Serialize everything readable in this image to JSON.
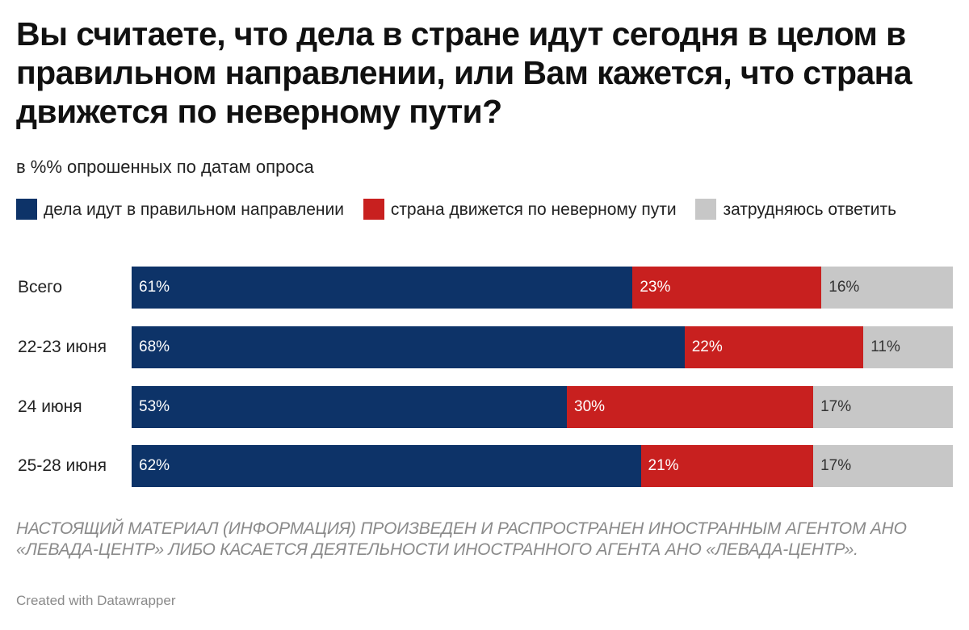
{
  "colors": {
    "right": "#0d3368",
    "wrong": "#c8201f",
    "hard": "#c7c7c7"
  },
  "chart_data": {
    "type": "bar",
    "orientation": "horizontal",
    "stacked": true,
    "title": "Вы считаете, что дела в стране идут сегодня в целом в правильном направлении, или Вам кажется, что страна движется по неверному пути?",
    "subtitle": "в %% опрошенных по датам опроса",
    "legend_position": "top",
    "categories": [
      "Всего",
      "22-23 июня",
      "24 июня",
      "25-28 июня"
    ],
    "xlim": [
      0,
      100
    ],
    "series": [
      {
        "name": "дела идут в правильном направлении",
        "color": "#0d3368",
        "values": [
          61,
          68,
          53,
          62
        ],
        "labels": [
          "61%",
          "68%",
          "53%",
          "62%"
        ]
      },
      {
        "name": "страна движется по неверному пути",
        "color": "#c8201f",
        "values": [
          23,
          22,
          30,
          21
        ],
        "labels": [
          "23%",
          "22%",
          "30%",
          "21%"
        ]
      },
      {
        "name": "затрудняюсь ответить",
        "color": "#c7c7c7",
        "values": [
          16,
          11,
          17,
          17
        ],
        "labels": [
          "16%",
          "11%",
          "17%",
          "17%"
        ]
      }
    ]
  },
  "footer": {
    "note": "НАСТОЯЩИЙ МАТЕРИАЛ (ИНФОРМАЦИЯ) ПРОИЗВЕДЕН И РАСПРОСТРАНЕН ИНОСТРАННЫМ АГЕНТОМ АНО «ЛЕВАДА-ЦЕНТР» ЛИБО КАСАЕТСЯ ДЕЯТЕЛЬНОСТИ ИНОСТРАННОГО АГЕНТА АНО «ЛЕВАДА-ЦЕНТР».",
    "credit": "Created with Datawrapper"
  }
}
